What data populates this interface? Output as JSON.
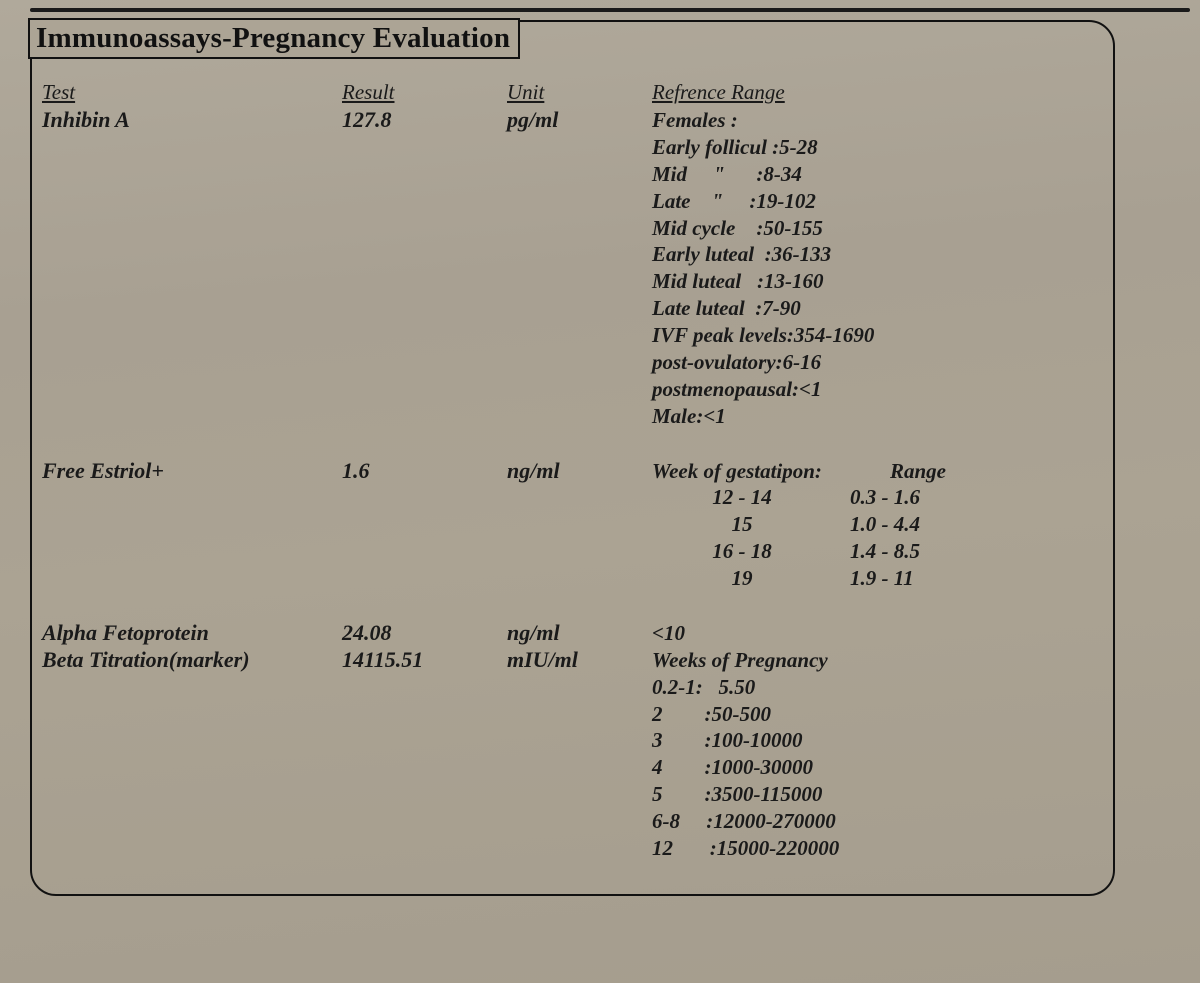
{
  "report": {
    "title": "Immunoassays-Pregnancy Evaluation",
    "headers": {
      "test": "Test",
      "result": "Result",
      "unit": "Unit",
      "ref": "Refrence Range"
    },
    "rows": [
      {
        "test": "Inhibin A",
        "result": "127.8",
        "unit": "pg/ml",
        "ref_lines": [
          "Females :",
          "Early follicul :5-28",
          "Mid     \"      :8-34",
          "Late    \"     :19-102",
          "Mid cycle    :50-155",
          "Early luteal  :36-133",
          "Mid luteal   :13-160",
          "Late luteal  :7-90",
          "IVF peak levels:354-1690",
          "post-ovulatory:6-16",
          "postmenopausal:<1",
          "Male:<1"
        ]
      },
      {
        "test": "Free Estriol+",
        "result": "1.6",
        "unit": "ng/ml",
        "ref_table": {
          "header": {
            "c1": "Week of gestatipon:",
            "c2": "Range"
          },
          "rows": [
            {
              "c1": "12 - 14",
              "c2": "0.3 - 1.6"
            },
            {
              "c1": "15",
              "c2": "1.0 - 4.4"
            },
            {
              "c1": "16 - 18",
              "c2": "1.4 - 8.5"
            },
            {
              "c1": "19",
              "c2": "1.9 - 11"
            }
          ]
        }
      },
      {
        "test": "Alpha Fetoprotein",
        "result": "24.08",
        "unit": "ng/ml",
        "ref_lines": [
          "<10"
        ]
      },
      {
        "test": "Beta Titration(marker)",
        "result": "14115.51",
        "unit": "mIU/ml",
        "ref_lines": [
          "Weeks of Pregnancy",
          "0.2-1:   5.50",
          "2        :50-500",
          "3        :100-10000",
          "4        :1000-30000",
          "5        :3500-115000",
          "6-8     :12000-270000",
          "12       :15000-220000"
        ]
      }
    ],
    "colors": {
      "paper_bg": "#a8a092",
      "ink": "#111111",
      "border": "#111111"
    },
    "typography": {
      "family": "Times New Roman",
      "title_size_pt": 22,
      "body_size_pt": 16,
      "style": "italic-bold"
    }
  }
}
